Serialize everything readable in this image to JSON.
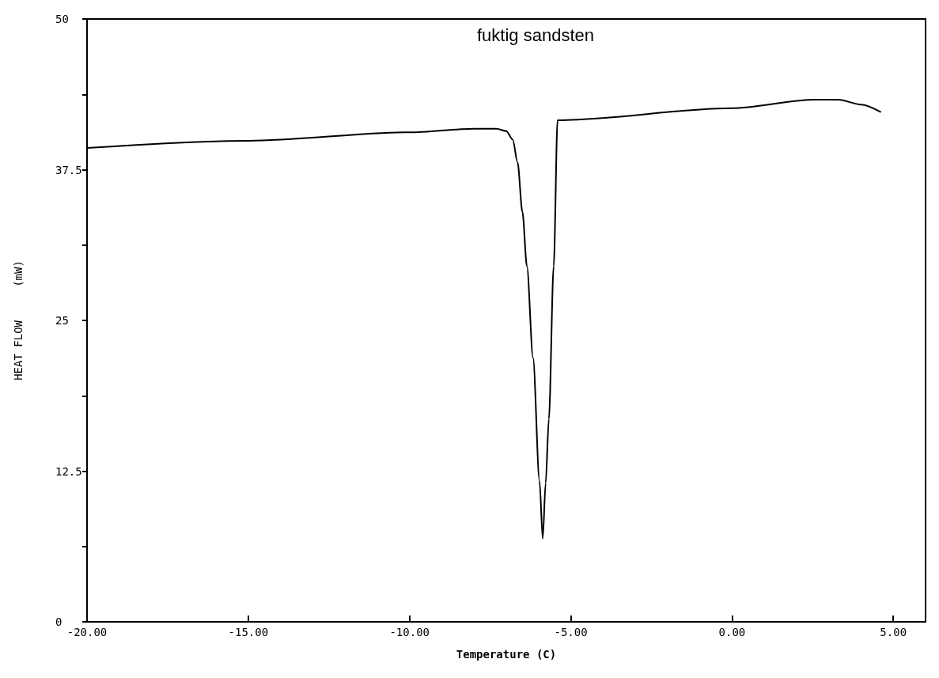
{
  "chart_data": {
    "type": "line",
    "title": "fuktig sandsten",
    "xlabel": "Temperature (C)",
    "ylabel": "HEAT FLOW     (mW)",
    "x": [
      -20,
      -15,
      -10,
      -8,
      -7.3,
      -7.0,
      -6.8,
      -6.65,
      -6.5,
      -6.36,
      -6.17,
      -5.97,
      -5.87,
      -5.78,
      -5.68,
      -5.53,
      -5.41,
      0,
      2.5,
      3.3,
      4,
      4.6
    ],
    "series": [
      {
        "color": "#000000",
        "values": [
          39.3,
          39.9,
          40.6,
          40.9,
          40.9,
          40.7,
          40,
          38.1,
          34,
          29.5,
          21.9,
          11.7,
          6.9,
          11.5,
          16.8,
          29.5,
          41.6,
          42.6,
          43.3,
          43.3,
          42.9,
          42.3
        ]
      }
    ],
    "xlim": [
      -20,
      6
    ],
    "xticks": [
      {
        "value": -20,
        "label": "-20.00"
      },
      {
        "value": -15,
        "label": "-15.00"
      },
      {
        "value": -10,
        "label": "-10.00"
      },
      {
        "value": -5,
        "label": "-5.00"
      },
      {
        "value": 0,
        "label": "0.00"
      },
      {
        "value": 5,
        "label": "5.00"
      }
    ],
    "ylim": [
      0,
      50
    ],
    "yticks": [
      0,
      {
        "value": 6.25,
        "label": null
      },
      12.5,
      {
        "value": 18.75,
        "label": null
      },
      25,
      {
        "value": 31.25,
        "label": null
      },
      37.5,
      {
        "value": 43.75,
        "label": null
      },
      50
    ],
    "marker": "none",
    "line_style": "solid"
  }
}
